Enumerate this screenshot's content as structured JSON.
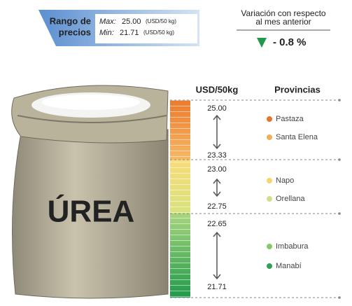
{
  "header": {
    "range_line1": "Rango de",
    "range_line2": "precios",
    "max_label": "Max:",
    "max_value": "25.00",
    "max_unit": "(USD/50 kg)",
    "min_label": "Min:",
    "min_value": "21.71",
    "min_unit": "(USD/50 kg)"
  },
  "variation": {
    "title_line1": "Variación con respecto",
    "title_line2": "al mes anterior",
    "value": "- 0.8 %"
  },
  "bag_label": "ÚREA",
  "columns": {
    "price": "USD/50kg",
    "provinces": "Provincias"
  },
  "groups": [
    {
      "high": "25.00",
      "low": "23.33",
      "provinces": [
        {
          "name": "Pastaza",
          "color": "#e8742a"
        },
        {
          "name": "Santa Elena",
          "color": "#f2ae57"
        }
      ]
    },
    {
      "high": "23.00",
      "low": "22.75",
      "provinces": [
        {
          "name": "Napo",
          "color": "#f7d56e"
        },
        {
          "name": "Orellana",
          "color": "#cfe08a"
        }
      ]
    },
    {
      "high": "22.65",
      "low": "21.71",
      "provinces": [
        {
          "name": "Imbabura",
          "color": "#8cc66a"
        },
        {
          "name": "Manabí",
          "color": "#2fa352"
        }
      ]
    }
  ]
}
